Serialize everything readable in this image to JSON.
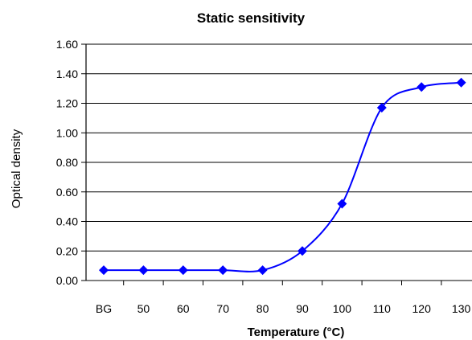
{
  "chart_data": {
    "type": "line",
    "title": "Static sensitivity",
    "xlabel": "Temperature (°C)",
    "ylabel": "Optical density",
    "categories": [
      "BG",
      "50",
      "60",
      "70",
      "80",
      "90",
      "100",
      "110",
      "120",
      "130"
    ],
    "yticks": [
      "0.00",
      "0.20",
      "0.40",
      "0.60",
      "0.80",
      "1.00",
      "1.20",
      "1.40",
      "1.60"
    ],
    "ylim": [
      0,
      1.6
    ],
    "grid": true,
    "smooth": true,
    "series": [
      {
        "name": "",
        "color": "#0000ff",
        "marker": "diamond",
        "values": [
          0.07,
          0.07,
          0.07,
          0.07,
          0.07,
          0.2,
          0.52,
          1.17,
          1.31,
          1.34
        ]
      }
    ]
  }
}
